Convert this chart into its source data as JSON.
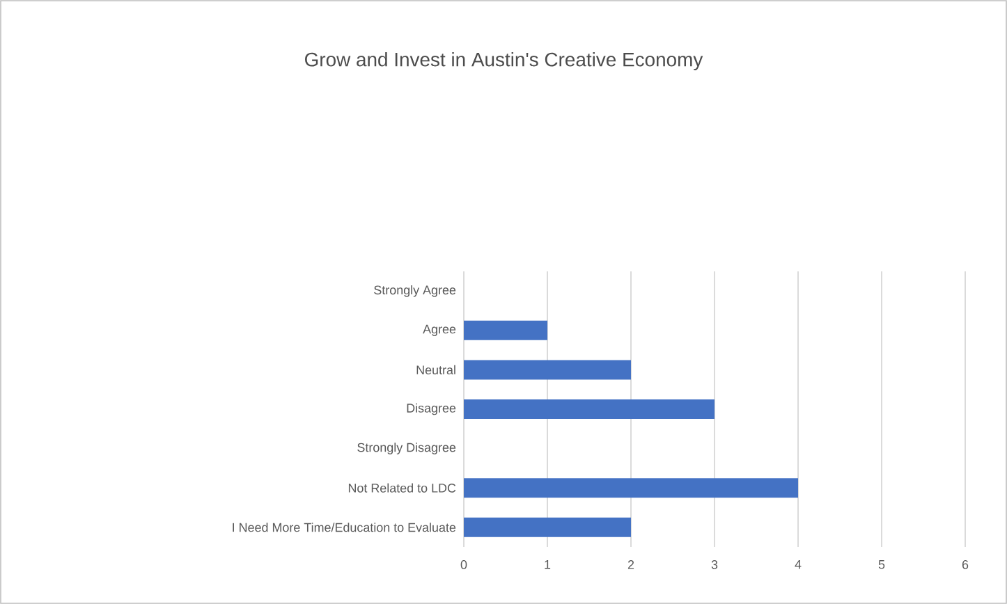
{
  "chart_data": {
    "type": "bar",
    "orientation": "horizontal",
    "title": "Grow and Invest in Austin's Creative Economy",
    "categories": [
      "Strongly Agree",
      "Agree",
      "Neutral",
      "Disagree",
      "Strongly Disagree",
      "Not Related to LDC",
      "I Need More Time/Education to Evaluate"
    ],
    "values": [
      0,
      1,
      2,
      3,
      0,
      4,
      2
    ],
    "color": "#4472c4",
    "xlim": [
      0,
      6
    ],
    "xticks": [
      0,
      1,
      2,
      3,
      4,
      5,
      6
    ],
    "grid": "x"
  }
}
